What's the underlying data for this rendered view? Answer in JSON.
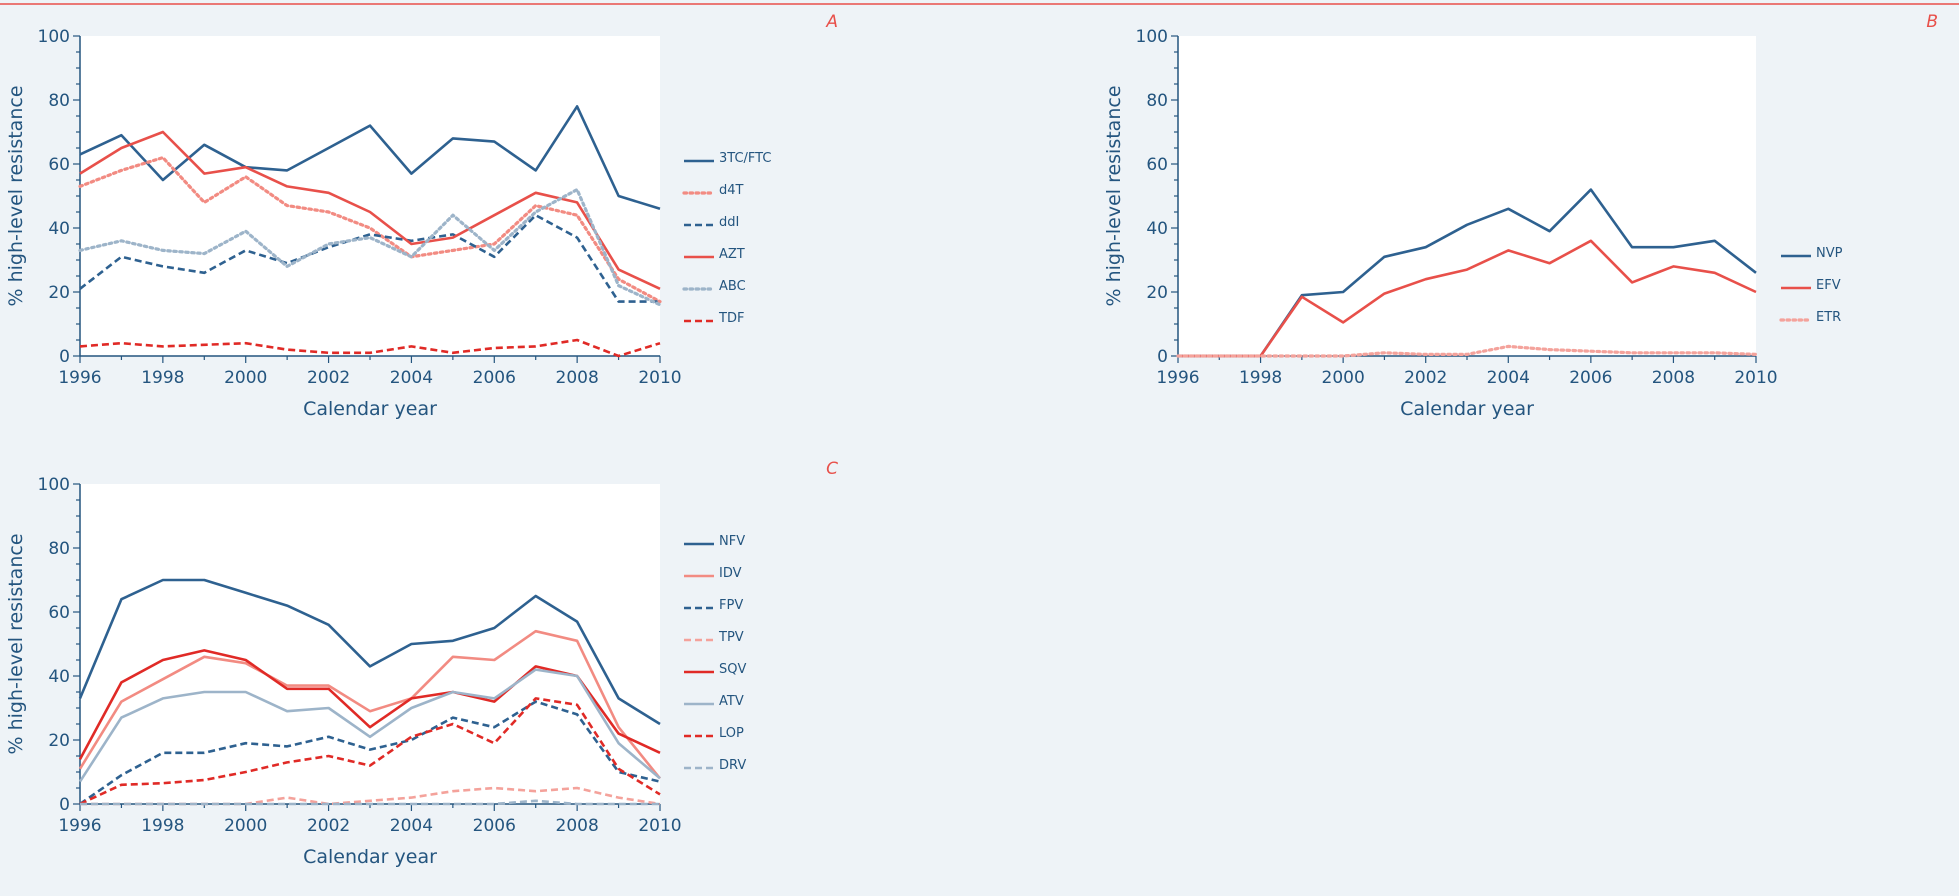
{
  "colors": {
    "dark_blue": "#2e6190",
    "light_blue": "#9db4c9",
    "red": "#e8504a",
    "dark_red": "#e02a26",
    "salmon": "#f28b82",
    "pink": "#f4a29b",
    "panel_letter": "#e8504a",
    "text": "#24557f"
  },
  "chart_data": [
    {
      "id": "A",
      "panel_label": "A",
      "type": "line",
      "xlabel": "Calendar year",
      "ylabel": "% high-level resistance",
      "xlim": [
        1996,
        2010
      ],
      "ylim": [
        0,
        100
      ],
      "xticks": [
        1996,
        1998,
        2000,
        2002,
        2004,
        2006,
        2008,
        2010
      ],
      "yticks": [
        0,
        20,
        40,
        60,
        80,
        100
      ],
      "grid": false,
      "legend": "right",
      "x": [
        1996,
        1997,
        1998,
        1999,
        2000,
        2001,
        2002,
        2003,
        2004,
        2005,
        2006,
        2007,
        2008,
        2009,
        2010
      ],
      "series": [
        {
          "name": "3TC/FTC",
          "color": "#2e6190",
          "dash": "solid",
          "values": [
            63,
            69,
            55,
            66,
            59,
            58,
            65,
            72,
            57,
            68,
            67,
            58,
            78,
            50,
            46
          ]
        },
        {
          "name": "d4T",
          "color": "#f28b82",
          "dash": "dotted",
          "values": [
            53,
            58,
            62,
            48,
            56,
            47,
            45,
            40,
            31,
            33,
            35,
            47,
            44,
            24,
            17
          ]
        },
        {
          "name": "ddI",
          "color": "#2e6190",
          "dash": "dashed",
          "values": [
            21,
            31,
            28,
            26,
            33,
            29,
            34,
            38,
            36,
            38,
            31,
            44,
            37,
            17,
            17
          ]
        },
        {
          "name": "AZT",
          "color": "#e8504a",
          "dash": "solid",
          "values": [
            57,
            65,
            70,
            57,
            59,
            53,
            51,
            45,
            35,
            37,
            44,
            51,
            48,
            27,
            21
          ]
        },
        {
          "name": "ABC",
          "color": "#9db4c9",
          "dash": "dotted",
          "values": [
            33,
            36,
            33,
            32,
            39,
            28,
            35,
            37,
            31,
            44,
            33,
            45,
            52,
            22,
            16
          ]
        },
        {
          "name": "TDF",
          "color": "#e02a26",
          "dash": "dashed",
          "values": [
            3,
            4,
            3,
            3.5,
            4,
            2,
            1,
            1,
            3,
            1,
            2.5,
            3,
            5,
            0,
            4
          ]
        }
      ]
    },
    {
      "id": "B",
      "panel_label": "B",
      "type": "line",
      "xlabel": "Calendar year",
      "ylabel": "% high-level resistance",
      "xlim": [
        1996,
        2010
      ],
      "ylim": [
        0,
        100
      ],
      "xticks": [
        1996,
        1998,
        2000,
        2002,
        2004,
        2006,
        2008,
        2010
      ],
      "yticks": [
        0,
        20,
        40,
        60,
        80,
        100
      ],
      "grid": false,
      "legend": "right",
      "x": [
        1996,
        1997,
        1998,
        1999,
        2000,
        2001,
        2002,
        2003,
        2004,
        2005,
        2006,
        2007,
        2008,
        2009,
        2010
      ],
      "series": [
        {
          "name": "NVP",
          "color": "#2e6190",
          "dash": "solid",
          "values": [
            0,
            0,
            0,
            19,
            20,
            31,
            34,
            41,
            46,
            39,
            52,
            34,
            34,
            36,
            26
          ]
        },
        {
          "name": "EFV",
          "color": "#e8504a",
          "dash": "solid",
          "values": [
            0,
            0,
            0,
            18.5,
            10.5,
            19.5,
            24,
            27,
            33,
            29,
            36,
            23,
            28,
            26,
            20
          ]
        },
        {
          "name": "ETR",
          "color": "#f4a29b",
          "dash": "dotted",
          "values": [
            0,
            0,
            0,
            0,
            0,
            1,
            0.5,
            0.5,
            3,
            2,
            1.5,
            1,
            1,
            1,
            0.5
          ]
        }
      ]
    },
    {
      "id": "C",
      "panel_label": "C",
      "type": "line",
      "xlabel": "Calendar year",
      "ylabel": "% high-level resistance",
      "xlim": [
        1996,
        2010
      ],
      "ylim": [
        0,
        100
      ],
      "xticks": [
        1996,
        1998,
        2000,
        2002,
        2004,
        2006,
        2008,
        2010
      ],
      "yticks": [
        0,
        20,
        40,
        60,
        80,
        100
      ],
      "grid": false,
      "legend": "right",
      "x": [
        1996,
        1997,
        1998,
        1999,
        2000,
        2001,
        2002,
        2003,
        2004,
        2005,
        2006,
        2007,
        2008,
        2009,
        2010
      ],
      "series": [
        {
          "name": "NFV",
          "color": "#2e6190",
          "dash": "solid",
          "values": [
            33,
            64,
            70,
            70,
            66,
            62,
            56,
            43,
            50,
            51,
            55,
            65,
            57,
            33,
            25
          ]
        },
        {
          "name": "IDV",
          "color": "#f28b82",
          "dash": "solid",
          "values": [
            11,
            32,
            39,
            46,
            44,
            37,
            37,
            29,
            33,
            46,
            45,
            54,
            51,
            24,
            8
          ]
        },
        {
          "name": "FPV",
          "color": "#2e6190",
          "dash": "dashed",
          "values": [
            0,
            9,
            16,
            16,
            19,
            18,
            21,
            17,
            20,
            27,
            24,
            32,
            28,
            10,
            7
          ]
        },
        {
          "name": "TPV",
          "color": "#f4a29b",
          "dash": "dashed",
          "values": [
            0,
            0,
            0,
            0,
            0,
            2,
            0,
            1,
            2,
            4,
            5,
            4,
            5,
            2,
            0
          ]
        },
        {
          "name": "SQV",
          "color": "#e02a26",
          "dash": "solid",
          "values": [
            14,
            38,
            45,
            48,
            45,
            36,
            36,
            24,
            33,
            35,
            32,
            43,
            40,
            22,
            16
          ]
        },
        {
          "name": "ATV",
          "color": "#9db4c9",
          "dash": "solid",
          "values": [
            7,
            27,
            33,
            35,
            35,
            29,
            30,
            21,
            30,
            35,
            33,
            42,
            40,
            19,
            8
          ]
        },
        {
          "name": "LOP",
          "color": "#e02a26",
          "dash": "dashed",
          "values": [
            0,
            6,
            6.5,
            7.5,
            10,
            13,
            15,
            12,
            21,
            25,
            19,
            33,
            31,
            11,
            3
          ]
        },
        {
          "name": "DRV",
          "color": "#9db4c9",
          "dash": "dashed",
          "values": [
            0,
            0,
            0,
            0,
            0,
            0,
            0,
            0,
            0,
            0,
            0,
            1,
            0,
            0,
            0
          ]
        }
      ]
    }
  ]
}
